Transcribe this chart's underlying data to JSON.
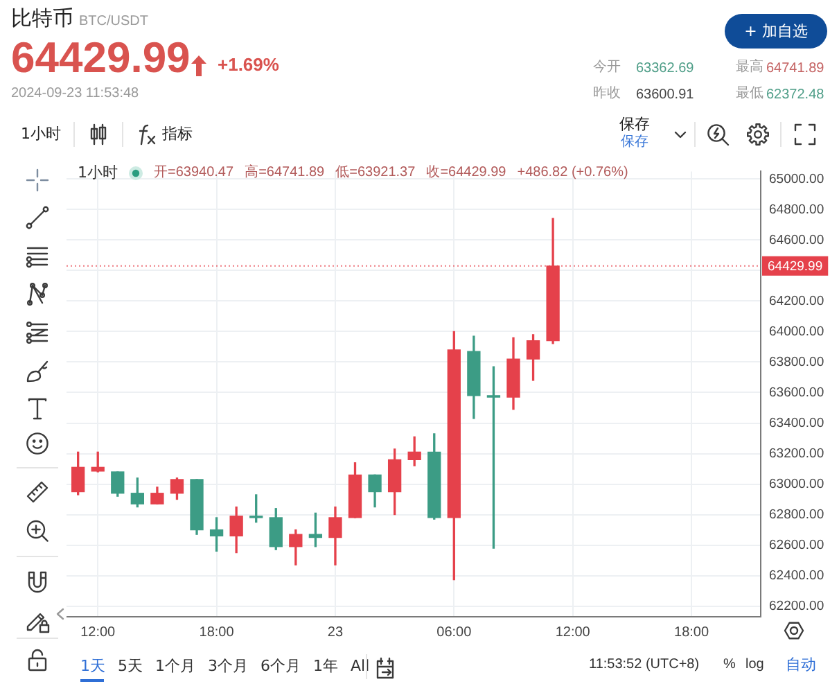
{
  "chart_data": {
    "type": "candlestick",
    "title": "比特币",
    "subtitle": "BTC/USDT",
    "annotations": [
      "64429.99",
      "+1.69%",
      "2024-09-23 11:53:48",
      "今开",
      "63362.69",
      "最高",
      "64741.89",
      "昨收",
      "63600.91",
      "最低",
      "62372.48",
      "+ 加自选",
      "1小时",
      "指标",
      "保存",
      "保存",
      "1小时",
      "开=63940.47",
      "高=64741.89",
      "低=63921.37",
      "收=64429.99",
      "+486.82 (+0.76%)",
      "1天",
      "5天",
      "1个月",
      "3个月",
      "6个月",
      "1年",
      "All",
      "11:53:52 (UTC+8)",
      "%",
      "log",
      "自动"
    ],
    "x": [
      "2024-09-22T11:00",
      "2024-09-22T12:00",
      "2024-09-22T13:00",
      "2024-09-22T14:00",
      "2024-09-22T15:00",
      "2024-09-22T16:00",
      "2024-09-22T17:00",
      "2024-09-22T18:00",
      "2024-09-22T19:00",
      "2024-09-22T20:00",
      "2024-09-22T21:00",
      "2024-09-22T22:00",
      "2024-09-22T23:00",
      "2024-09-23T00:00",
      "2024-09-23T01:00",
      "2024-09-23T02:00",
      "2024-09-23T03:00",
      "2024-09-23T04:00",
      "2024-09-23T05:00",
      "2024-09-23T06:00",
      "2024-09-23T07:00",
      "2024-09-23T08:00",
      "2024-09-23T09:00",
      "2024-09-23T10:00",
      "2024-09-23T11:00"
    ],
    "ohlc": [
      [
        62950,
        63210,
        62930,
        63110
      ],
      [
        63085,
        63210,
        63080,
        63110
      ],
      [
        63080,
        63080,
        62920,
        62940
      ],
      [
        62940,
        63040,
        62850,
        62870
      ],
      [
        62870,
        62980,
        62870,
        62940
      ],
      [
        62940,
        63040,
        62900,
        63030
      ],
      [
        63030,
        63030,
        62670,
        62700
      ],
      [
        62700,
        62780,
        62560,
        62660
      ],
      [
        62660,
        62850,
        62550,
        62790
      ],
      [
        62790,
        62930,
        62750,
        62780
      ],
      [
        62780,
        62840,
        62570,
        62590
      ],
      [
        62590,
        62700,
        62470,
        62670
      ],
      [
        62670,
        62810,
        62590,
        62650
      ],
      [
        62650,
        62850,
        62470,
        62780
      ],
      [
        62780,
        63140,
        62780,
        63060
      ],
      [
        63060,
        63060,
        62850,
        62950
      ],
      [
        62950,
        63230,
        62800,
        63160
      ],
      [
        63160,
        63310,
        63120,
        63210
      ],
      [
        63210,
        63330,
        62770,
        62780
      ],
      [
        62780,
        64000,
        62372.48,
        63880
      ],
      [
        63870,
        63970,
        63430,
        63580
      ],
      [
        63580,
        63770,
        62580,
        63570
      ],
      [
        63570,
        63960,
        63490,
        63820
      ],
      [
        63820,
        63980,
        63680,
        63940
      ],
      [
        63940.47,
        64741.89,
        63921.37,
        64429.99
      ]
    ],
    "colors": [
      "#e5414b",
      "#e5414b",
      "#3c9c85",
      "#3c9c85",
      "#e5414b",
      "#e5414b",
      "#3c9c85",
      "#3c9c85",
      "#e5414b",
      "#3c9c85",
      "#3c9c85",
      "#e5414b",
      "#3c9c85",
      "#e5414b",
      "#e5414b",
      "#3c9c85",
      "#e5414b",
      "#e5414b",
      "#3c9c85",
      "#e5414b",
      "#3c9c85",
      "#3c9c85",
      "#e5414b",
      "#e5414b",
      "#e5414b"
    ],
    "xlim": [
      "2024-09-22T10:25",
      "2024-09-23T21:30"
    ],
    "xticks": [
      {
        "value": "2024-09-22T12:00",
        "label": "12:00"
      },
      {
        "value": "2024-09-22T18:00",
        "label": "18:00"
      },
      {
        "value": "2024-09-23T00:00",
        "label": "23"
      },
      {
        "value": "2024-09-23T06:00",
        "label": "06:00"
      },
      {
        "value": "2024-09-23T12:00",
        "label": "12:00"
      },
      {
        "value": "2024-09-23T18:00",
        "label": "18:00"
      }
    ],
    "ylim": [
      62130,
      65050
    ],
    "yticks": [
      {
        "value": 62200,
        "label": "62200.00"
      },
      {
        "value": 62400,
        "label": "62400.00"
      },
      {
        "value": 62600,
        "label": "62600.00"
      },
      {
        "value": 62800,
        "label": "62800.00"
      },
      {
        "value": 63000,
        "label": "63000.00"
      },
      {
        "value": 63200,
        "label": "63200.00"
      },
      {
        "value": 63400,
        "label": "63400.00"
      },
      {
        "value": 63600,
        "label": "63600.00"
      },
      {
        "value": 63800,
        "label": "63800.00"
      },
      {
        "value": 64000,
        "label": "64000.00"
      },
      {
        "value": 64200,
        "label": "64200.00"
      },
      {
        "value": 64400,
        "label": null
      },
      {
        "value": 64600,
        "label": "64600.00"
      },
      {
        "value": 64800,
        "label": "64800.00"
      },
      {
        "value": 65000,
        "label": "65000.00"
      }
    ],
    "ref_lines": [
      {
        "axis": "y",
        "value": 64429.99,
        "label": "64429.99",
        "color": "#e5414b",
        "line_style": "dotted"
      }
    ],
    "grid": true
  }
}
